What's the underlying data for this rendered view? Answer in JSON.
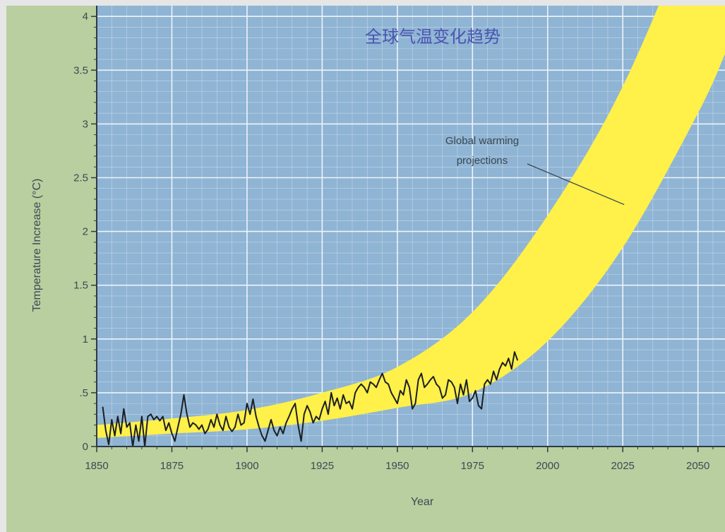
{
  "chart_data": {
    "type": "area",
    "title": "全球气温变化趋势",
    "xlabel": "Year",
    "ylabel": "Temperature Increase (°C)",
    "xlim": [
      1850,
      2059
    ],
    "ylim": [
      0,
      4.1
    ],
    "grid": true,
    "x_ticks": [
      1850,
      1875,
      1900,
      1925,
      1950,
      1975,
      2000,
      2025,
      2050
    ],
    "x_tick_labels": [
      "1850",
      "1875",
      "1900",
      "1925",
      "1950",
      "1975",
      "2000",
      "2025",
      "2050"
    ],
    "y_ticks": [
      0,
      0.5,
      1,
      1.5,
      2,
      2.5,
      3,
      3.5,
      4
    ],
    "y_tick_labels": [
      "0",
      ".5",
      "1",
      "1.5",
      "2",
      "2.5",
      "3",
      "3.5",
      "4"
    ],
    "annotation": {
      "lines": [
        "Global warming",
        "projections"
      ],
      "points_to": [
        2025,
        2.25
      ]
    },
    "colors": {
      "plot_background": "#8fb4d4",
      "outer_background": "#b9cf9f",
      "band": "#fff04a",
      "observed_line": "#1b1f22",
      "grid": "#eef4fa",
      "title": "#4a55b0"
    },
    "series": [
      {
        "name": "Global warming projections",
        "kind": "band",
        "x": [
          1850,
          1875,
          1900,
          1925,
          1950,
          1975,
          2000,
          2025,
          2050,
          2059
        ],
        "lower": [
          0.08,
          0.12,
          0.16,
          0.24,
          0.36,
          0.5,
          0.98,
          1.85,
          3.1,
          3.65
        ],
        "upper": [
          0.2,
          0.26,
          0.34,
          0.5,
          0.74,
          1.25,
          2.15,
          3.35,
          5.0,
          5.7
        ]
      },
      {
        "name": "Observed",
        "kind": "line",
        "x": [
          1852,
          1853,
          1854,
          1855,
          1856,
          1857,
          1858,
          1859,
          1860,
          1861,
          1862,
          1863,
          1864,
          1865,
          1866,
          1867,
          1868,
          1869,
          1870,
          1871,
          1872,
          1873,
          1874,
          1875,
          1876,
          1877,
          1878,
          1879,
          1880,
          1881,
          1882,
          1883,
          1884,
          1885,
          1886,
          1887,
          1888,
          1889,
          1890,
          1891,
          1892,
          1893,
          1894,
          1895,
          1896,
          1897,
          1898,
          1899,
          1900,
          1901,
          1902,
          1903,
          1904,
          1905,
          1906,
          1907,
          1908,
          1909,
          1910,
          1911,
          1912,
          1913,
          1914,
          1915,
          1916,
          1917,
          1918,
          1919,
          1920,
          1921,
          1922,
          1923,
          1924,
          1925,
          1926,
          1927,
          1928,
          1929,
          1930,
          1931,
          1932,
          1933,
          1934,
          1935,
          1936,
          1937,
          1938,
          1939,
          1940,
          1941,
          1942,
          1943,
          1944,
          1945,
          1946,
          1947,
          1948,
          1949,
          1950,
          1951,
          1952,
          1953,
          1954,
          1955,
          1956,
          1957,
          1958,
          1959,
          1960,
          1961,
          1962,
          1963,
          1964,
          1965,
          1966,
          1967,
          1968,
          1969,
          1970,
          1971,
          1972,
          1973,
          1974,
          1975,
          1976,
          1977,
          1978,
          1979,
          1980,
          1981,
          1982,
          1983,
          1984,
          1985,
          1986,
          1987,
          1988,
          1989,
          1990
        ],
        "y": [
          0.37,
          0.15,
          0.02,
          0.25,
          0.1,
          0.28,
          0.12,
          0.35,
          0.18,
          0.22,
          0.0,
          0.2,
          0.05,
          0.28,
          0.0,
          0.28,
          0.3,
          0.25,
          0.28,
          0.24,
          0.28,
          0.15,
          0.22,
          0.12,
          0.05,
          0.18,
          0.3,
          0.48,
          0.3,
          0.18,
          0.22,
          0.2,
          0.16,
          0.2,
          0.12,
          0.16,
          0.25,
          0.18,
          0.3,
          0.2,
          0.15,
          0.28,
          0.18,
          0.14,
          0.18,
          0.3,
          0.2,
          0.22,
          0.4,
          0.3,
          0.44,
          0.28,
          0.18,
          0.1,
          0.05,
          0.15,
          0.25,
          0.15,
          0.1,
          0.18,
          0.12,
          0.22,
          0.28,
          0.35,
          0.4,
          0.2,
          0.05,
          0.3,
          0.38,
          0.32,
          0.22,
          0.28,
          0.25,
          0.35,
          0.42,
          0.3,
          0.5,
          0.38,
          0.45,
          0.35,
          0.48,
          0.4,
          0.42,
          0.35,
          0.5,
          0.55,
          0.58,
          0.55,
          0.5,
          0.6,
          0.58,
          0.55,
          0.62,
          0.68,
          0.6,
          0.58,
          0.5,
          0.45,
          0.4,
          0.52,
          0.48,
          0.62,
          0.55,
          0.35,
          0.4,
          0.62,
          0.68,
          0.55,
          0.58,
          0.62,
          0.65,
          0.58,
          0.55,
          0.45,
          0.48,
          0.62,
          0.6,
          0.55,
          0.4,
          0.58,
          0.48,
          0.62,
          0.42,
          0.45,
          0.52,
          0.38,
          0.35,
          0.58,
          0.62,
          0.58,
          0.7,
          0.62,
          0.72,
          0.78,
          0.75,
          0.82,
          0.72,
          0.88,
          0.8
        ]
      }
    ]
  }
}
